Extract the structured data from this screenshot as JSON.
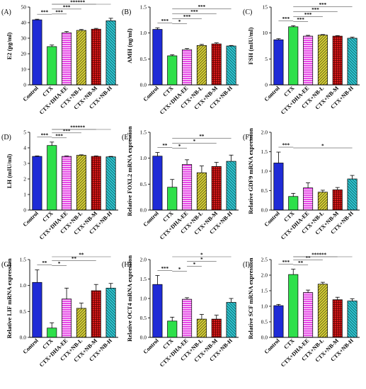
{
  "colors": {
    "Control": "#1f2bd6",
    "CTX": "#2ee04a",
    "CTX+DHA-EE": "#e64ae6",
    "CTX+NB-L": "#d8d33a",
    "CTX+NB-M": "#d81c1c",
    "CTX+NB-H": "#32c8d2"
  },
  "chart_data": [
    {
      "type": "bar",
      "panel_label": "(A)",
      "categories": [
        "Control",
        "CTX",
        "CTX+DHA-EE",
        "CTX+NB-L",
        "CTX+NB-M",
        "CTX+NB-H"
      ],
      "values": [
        41.8,
        24.6,
        33.5,
        35.0,
        35.8,
        41.2
      ],
      "errors": [
        0.4,
        1.0,
        0.8,
        0.6,
        0.5,
        1.6
      ],
      "ylabel": "E2 (pg/ml)",
      "ylim": [
        0,
        50
      ],
      "yticks": [
        "0",
        "10",
        "20",
        "30",
        "40",
        "50"
      ],
      "significance": [
        {
          "from": 0,
          "to": 1,
          "label": "***"
        },
        {
          "from": 1,
          "to": 2,
          "label": "***"
        },
        {
          "from": 1,
          "to": 3,
          "label": "***"
        },
        {
          "from": 1,
          "to": 4,
          "label": "***"
        },
        {
          "from": 1,
          "to": 5,
          "label": "***"
        }
      ]
    },
    {
      "type": "bar",
      "panel_label": "(B)",
      "categories": [
        "Control",
        "CTX",
        "CTX+DHA-EE",
        "CTX+NB-L",
        "CTX+NB-M",
        "CTX+NB-H"
      ],
      "values": [
        1.07,
        0.56,
        0.68,
        0.76,
        0.79,
        0.75
      ],
      "errors": [
        0.03,
        0.02,
        0.02,
        0.02,
        0.02,
        0.01
      ],
      "ylabel": "AMH (ng/ml)",
      "ylim": [
        0,
        1.5
      ],
      "yticks": [
        "0.0",
        "0.5",
        "1.0",
        "1.5"
      ],
      "significance": [
        {
          "from": 0,
          "to": 1,
          "label": "***"
        },
        {
          "from": 1,
          "to": 2,
          "label": "*"
        },
        {
          "from": 1,
          "to": 3,
          "label": "***"
        },
        {
          "from": 1,
          "to": 4,
          "label": "***"
        },
        {
          "from": 1,
          "to": 5,
          "label": "***"
        }
      ]
    },
    {
      "type": "bar",
      "panel_label": "(C)",
      "categories": [
        "Control",
        "CTX",
        "CTX+DHA-EE",
        "CTX+NB-L",
        "CTX+NB-M",
        "CTX+NB-H"
      ],
      "values": [
        8.7,
        11.2,
        9.4,
        9.6,
        9.4,
        9.0
      ],
      "errors": [
        0.2,
        0.2,
        0.15,
        0.1,
        0.1,
        0.2
      ],
      "ylabel": "FSH (mIU/ml)",
      "ylim": [
        0,
        15
      ],
      "yticks": [
        "0",
        "5",
        "10",
        "15"
      ],
      "significance": [
        {
          "from": 0,
          "to": 1,
          "label": "***"
        },
        {
          "from": 1,
          "to": 2,
          "label": "***"
        },
        {
          "from": 1,
          "to": 3,
          "label": "***"
        },
        {
          "from": 1,
          "to": 4,
          "label": "***"
        },
        {
          "from": 1,
          "to": 5,
          "label": "***"
        }
      ]
    },
    {
      "type": "bar",
      "panel_label": "(D)",
      "categories": [
        "Control",
        "CTX",
        "CTX+DHA-EE",
        "CTX+NB-L",
        "CTX+NB-M",
        "CTX+NB-H"
      ],
      "values": [
        3.45,
        4.15,
        3.45,
        3.52,
        3.45,
        3.42
      ],
      "errors": [
        0.03,
        0.22,
        0.03,
        0.03,
        0.03,
        0.03
      ],
      "ylabel": "LH (mIU/ml)",
      "ylim": [
        0,
        5
      ],
      "yticks": [
        "0",
        "1",
        "2",
        "3",
        "4",
        "5"
      ],
      "significance": [
        {
          "from": 0,
          "to": 1,
          "label": "***"
        },
        {
          "from": 1,
          "to": 2,
          "label": "***"
        },
        {
          "from": 1,
          "to": 3,
          "label": "***"
        },
        {
          "from": 1,
          "to": 4,
          "label": "***"
        },
        {
          "from": 1,
          "to": 5,
          "label": "***"
        }
      ]
    },
    {
      "type": "bar",
      "panel_label": "(E)",
      "categories": [
        "Control",
        "CTX",
        "CTX+DHA-EE",
        "CTX+NB-L",
        "CTX+NB-M",
        "CTX+NB-H"
      ],
      "values": [
        1.04,
        0.44,
        0.88,
        0.72,
        0.84,
        0.94
      ],
      "errors": [
        0.07,
        0.15,
        0.09,
        0.13,
        0.08,
        0.12
      ],
      "ylabel": "Relative FOXL2 mRNA expression",
      "ylim": [
        0,
        1.5
      ],
      "yticks": [
        "0.0",
        "0.5",
        "1.0",
        "1.5"
      ],
      "significance": [
        {
          "from": 0,
          "to": 1,
          "label": "**"
        },
        {
          "from": 1,
          "to": 2,
          "label": "*"
        },
        {
          "from": 1,
          "to": 4,
          "label": "*"
        },
        {
          "from": 1,
          "to": 5,
          "label": "**"
        }
      ]
    },
    {
      "type": "bar",
      "panel_label": "(F)",
      "categories": [
        "Control",
        "CTX",
        "CTX+DHA-EE",
        "CTX+NB-L",
        "CTX+NB-M",
        "CTX+NB-H"
      ],
      "values": [
        1.21,
        0.35,
        0.57,
        0.46,
        0.52,
        0.8
      ],
      "errors": [
        0.28,
        0.08,
        0.13,
        0.05,
        0.06,
        0.09
      ],
      "ylabel": "Relative GDF9 mRNA expression",
      "ylim": [
        0,
        2.0
      ],
      "yticks": [
        "0.0",
        "0.5",
        "1.0",
        "1.5",
        "2.0"
      ],
      "significance": [
        {
          "from": 0,
          "to": 1,
          "label": "***"
        },
        {
          "from": 1,
          "to": 5,
          "label": "*"
        }
      ]
    },
    {
      "type": "bar",
      "panel_label": "(G)",
      "categories": [
        "Control",
        "CTX",
        "CTX+DHA-EE",
        "CTX+NB-L",
        "CTX+NB-M",
        "CTX+NB-H"
      ],
      "values": [
        1.06,
        0.18,
        0.74,
        0.56,
        0.9,
        0.95
      ],
      "errors": [
        0.24,
        0.1,
        0.21,
        0.1,
        0.12,
        0.09
      ],
      "ylabel": "Relative LIF mRNA expression",
      "ylim": [
        0,
        1.5
      ],
      "yticks": [
        "0.0",
        "0.5",
        "1.0",
        "1.5"
      ],
      "significance": [
        {
          "from": 0,
          "to": 1,
          "label": "**"
        },
        {
          "from": 1,
          "to": 2,
          "label": "*"
        },
        {
          "from": 1,
          "to": 4,
          "label": "**"
        },
        {
          "from": 1,
          "to": 5,
          "label": "**"
        }
      ]
    },
    {
      "type": "bar",
      "panel_label": "(H)",
      "categories": [
        "Control",
        "CTX",
        "CTX+DHA-EE",
        "CTX+NB-L",
        "CTX+NB-M",
        "CTX+NB-H"
      ],
      "values": [
        1.36,
        0.42,
        0.98,
        0.47,
        0.47,
        0.9
      ],
      "errors": [
        0.23,
        0.1,
        0.04,
        0.12,
        0.1,
        0.1
      ],
      "ylabel": "Relative OCT4 mRNA expression",
      "ylim": [
        0,
        2.0
      ],
      "yticks": [
        "0.0",
        "0.5",
        "1.0",
        "1.5",
        "2.0"
      ],
      "significance": [
        {
          "from": 0,
          "to": 1,
          "label": "***"
        },
        {
          "from": 1,
          "to": 2,
          "label": "*"
        },
        {
          "from": 2,
          "to": 3,
          "label": "*"
        },
        {
          "from": 2,
          "to": 4,
          "label": "*"
        },
        {
          "from": 1,
          "to": 5,
          "label": "*"
        }
      ]
    },
    {
      "type": "bar",
      "panel_label": "(I)",
      "categories": [
        "Control",
        "CTX",
        "CTX+DHA-EE",
        "CTX+NB-L",
        "CTX+NB-M",
        "CTX+NB-H"
      ],
      "values": [
        1.02,
        2.02,
        1.44,
        1.71,
        1.21,
        1.17
      ],
      "errors": [
        0.04,
        0.17,
        0.08,
        0.06,
        0.08,
        0.07
      ],
      "ylabel": "Relative SCF mRNA expression",
      "ylim": [
        0,
        2.5
      ],
      "yticks": [
        "0.0",
        "0.5",
        "1.0",
        "1.5",
        "2.0",
        "2.5"
      ],
      "significance": [
        {
          "from": 0,
          "to": 1,
          "label": "***"
        },
        {
          "from": 1,
          "to": 2,
          "label": "**"
        },
        {
          "from": 1,
          "to": 3,
          "label": "**"
        },
        {
          "from": 1,
          "to": 4,
          "label": "***"
        },
        {
          "from": 1,
          "to": 5,
          "label": "***"
        }
      ]
    }
  ]
}
